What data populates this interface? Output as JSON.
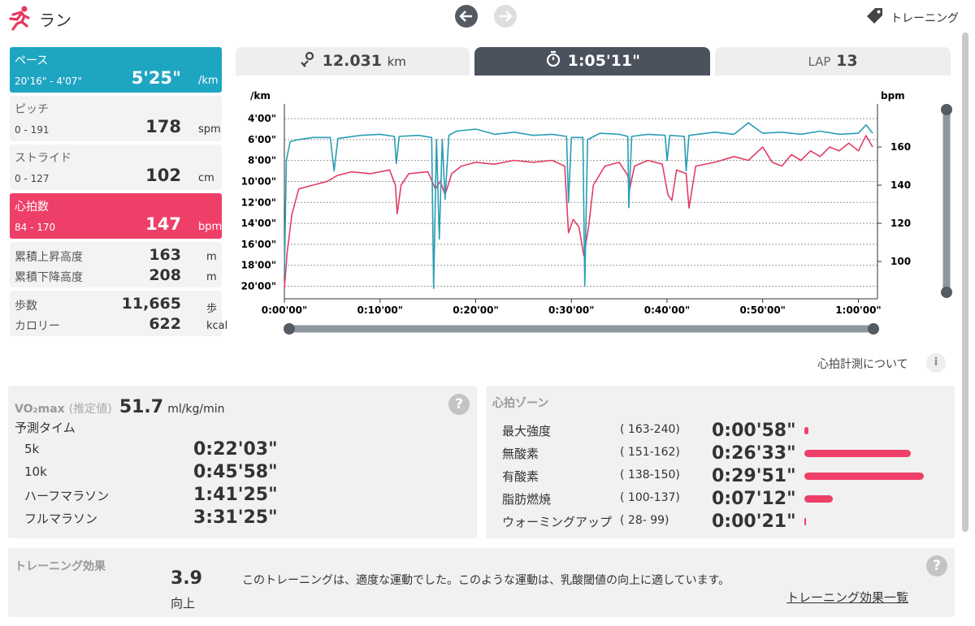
{
  "header": {
    "title": "ラン",
    "link": "トレーニング"
  },
  "metrics": [
    {
      "label": "ペース",
      "range": "20'16\" - 4'07\"",
      "value": "5'25\"",
      "unit": "/km"
    },
    {
      "label": "ピッチ",
      "range": "0 - 191",
      "value": 178,
      "unit": "spm"
    },
    {
      "label": "ストライド",
      "range": "0 - 127",
      "value": 102,
      "unit": "cm"
    },
    {
      "label": "心拍数",
      "range": "84 - 170",
      "value": 147,
      "unit": "bpm"
    }
  ],
  "totals": [
    [
      {
        "label": "累積上昇高度",
        "value": 163,
        "unit": "m"
      },
      {
        "label": "累積下降高度",
        "value": 208,
        "unit": "m"
      }
    ],
    [
      {
        "label": "歩数",
        "value": "11,665",
        "unit": "歩"
      },
      {
        "label": "カロリー",
        "value": 622,
        "unit": "kcal"
      }
    ]
  ],
  "tabs": {
    "distance": 12.031,
    "distance_unit": "km",
    "time": "1:05'11\"",
    "lap_label": "LAP",
    "lap": 13
  },
  "chart_data": {
    "type": "line",
    "y_label": "/km",
    "y2_label": "bpm",
    "xlim": [
      0,
      62
    ],
    "xticks": [
      {
        "value": 0,
        "label": "0:00'00\""
      },
      {
        "value": 10,
        "label": "0:10'00\""
      },
      {
        "value": 20,
        "label": "0:20'00\""
      },
      {
        "value": 30,
        "label": "0:30'00\""
      },
      {
        "value": 40,
        "label": "0:40'00\""
      },
      {
        "value": 50,
        "label": "0:50'00\""
      },
      {
        "value": 60,
        "label": "1:00'00\""
      }
    ],
    "ylim": [
      21.2,
      2.6
    ],
    "yticks": [
      {
        "value": 4,
        "label": "4'00\""
      },
      {
        "value": 6,
        "label": "6'00\""
      },
      {
        "value": 8,
        "label": "8'00\""
      },
      {
        "value": 10,
        "label": "10'00\""
      },
      {
        "value": 12,
        "label": "12'00\""
      },
      {
        "value": 14,
        "label": "14'00\""
      },
      {
        "value": 16,
        "label": "16'00\""
      },
      {
        "value": 18,
        "label": "18'00\""
      },
      {
        "value": 20,
        "label": "20'00\""
      }
    ],
    "y2lim": [
      80.4,
      182.6
    ],
    "y2ticks": [
      100,
      120,
      140,
      160
    ],
    "grid": true,
    "series": [
      {
        "color": "#2a9db5",
        "x": [
          0,
          0.2,
          0.6,
          1.5,
          3,
          4.8,
          5.2,
          5.6,
          8,
          10,
          11.5,
          11.7,
          12,
          14,
          15.4,
          15.6,
          15.9,
          16.2,
          16.5,
          16.8,
          17.2,
          18,
          20,
          22,
          24,
          26,
          28,
          29.5,
          29.7,
          30,
          31.2,
          31.4,
          31.7,
          33,
          35,
          35.9,
          36,
          36.3,
          38,
          39.8,
          40,
          40.3,
          41.8,
          42,
          42.3,
          45,
          47,
          48.5,
          50,
          52,
          54,
          56,
          58,
          60,
          60.8,
          61.5
        ],
        "values": [
          19,
          8,
          6.2,
          6.0,
          5.8,
          5.8,
          9.0,
          5.9,
          5.6,
          5.5,
          5.7,
          8.3,
          5.7,
          5.6,
          5.8,
          20.2,
          6.0,
          15.5,
          6.0,
          11.7,
          5.6,
          5.2,
          5.0,
          5.5,
          5.3,
          5.6,
          5.5,
          5.7,
          12.0,
          5.8,
          5.8,
          20.0,
          6.0,
          5.4,
          5.5,
          5.7,
          12.5,
          5.7,
          5.5,
          5.6,
          8.0,
          5.6,
          5.7,
          9.0,
          5.6,
          5.3,
          5.5,
          4.4,
          5.4,
          5.3,
          5.5,
          5.2,
          5.5,
          5.4,
          4.6,
          5.4
        ]
      },
      {
        "color": "#e23d66",
        "axis": "y2",
        "x": [
          0,
          0.3,
          0.8,
          1.5,
          3,
          4.5,
          5.5,
          7,
          9,
          11,
          11.6,
          11.8,
          12.2,
          13,
          15,
          15.8,
          16.3,
          16.8,
          17.5,
          18.5,
          20,
          22,
          24,
          26,
          28,
          29.3,
          29.7,
          30.2,
          30.8,
          31.3,
          31.8,
          32.3,
          33.5,
          35,
          35.9,
          36.1,
          36.6,
          38,
          39.5,
          40.1,
          40.5,
          41,
          42,
          42.3,
          43,
          45,
          47,
          48.5,
          50,
          51,
          52,
          53,
          54,
          55,
          56,
          57,
          58,
          59,
          60,
          60.8,
          61.5
        ],
        "values": [
          86,
          105,
          125,
          138,
          140,
          142,
          145,
          147,
          146,
          148,
          140,
          125,
          140,
          146,
          147,
          138,
          142,
          135,
          146,
          150,
          152,
          151,
          153,
          152,
          153,
          150,
          115,
          122,
          118,
          103,
          118,
          140,
          150,
          152,
          145,
          138,
          150,
          153,
          151,
          135,
          132,
          148,
          146,
          128,
          150,
          152,
          155,
          153,
          160,
          152,
          150,
          156,
          153,
          158,
          155,
          160,
          158,
          162,
          158,
          166,
          160
        ]
      }
    ]
  },
  "hr_note": "心拍計測について",
  "vo2": {
    "label": "VO₂max",
    "note": "(推定値)",
    "value": 51.7,
    "unit": "ml/kg/min",
    "predict_title": "予測タイム",
    "predictions": [
      [
        "5k",
        "0:22'03\""
      ],
      [
        "10k",
        "0:45'58\""
      ],
      [
        "ハーフマラソン",
        "1:41'25\""
      ],
      [
        "フルマラソン",
        "3:31'25\""
      ]
    ]
  },
  "zones": {
    "title": "心拍ゾーン",
    "items": [
      {
        "name": "最大強度",
        "range": "( 163-240)",
        "time": "0:00'58\"",
        "seconds": 58
      },
      {
        "name": "無酸素",
        "range": "( 151-162)",
        "time": "0:26'33\"",
        "seconds": 1593
      },
      {
        "name": "有酸素",
        "range": "( 138-150)",
        "time": "0:29'51\"",
        "seconds": 1791
      },
      {
        "name": "脂肪燃焼",
        "range": "( 100-137)",
        "time": "0:07'12\"",
        "seconds": 432
      },
      {
        "name": "ウォーミングアップ",
        "range": "(  28-  99)",
        "time": "0:00'21\"",
        "seconds": 21
      }
    ]
  },
  "training": {
    "title": "トレーニング効果",
    "value": 3.9,
    "level": "向上",
    "message": "このトレーニングは、適度な運動でした。このような運動は、乳酸閾値の向上に適しています。",
    "link": "トレーニング効果一覧"
  }
}
